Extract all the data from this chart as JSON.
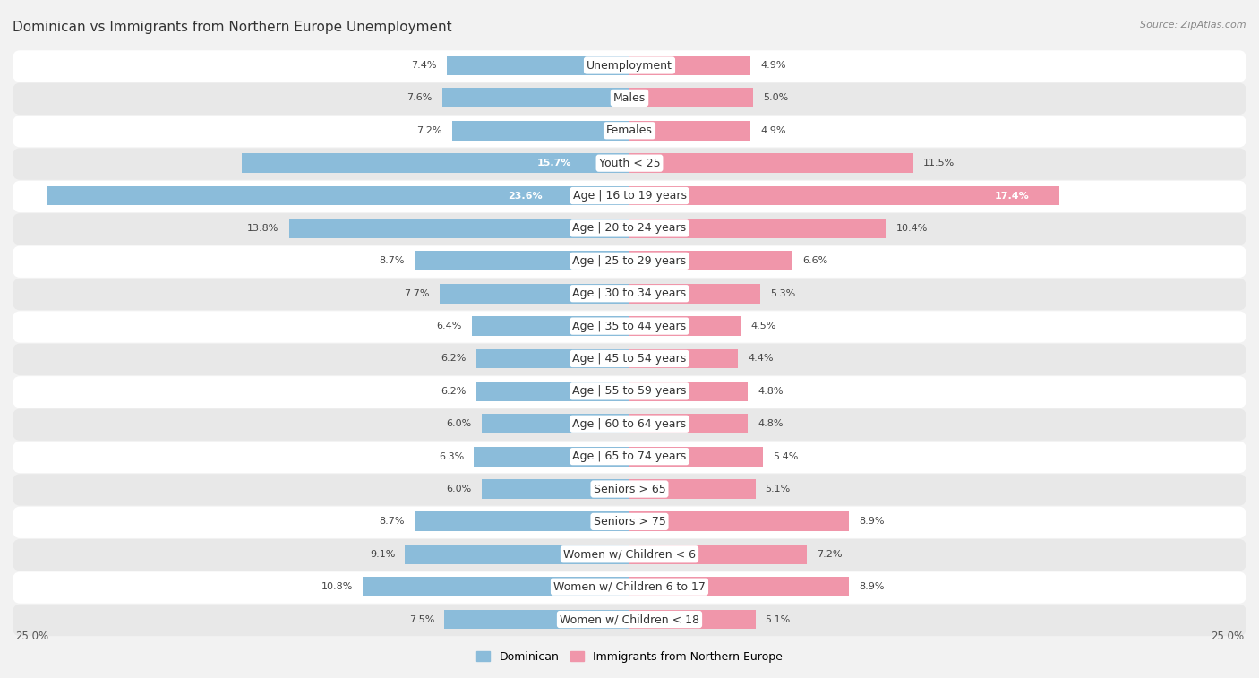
{
  "title": "Dominican vs Immigrants from Northern Europe Unemployment",
  "source": "Source: ZipAtlas.com",
  "categories": [
    "Unemployment",
    "Males",
    "Females",
    "Youth < 25",
    "Age | 16 to 19 years",
    "Age | 20 to 24 years",
    "Age | 25 to 29 years",
    "Age | 30 to 34 years",
    "Age | 35 to 44 years",
    "Age | 45 to 54 years",
    "Age | 55 to 59 years",
    "Age | 60 to 64 years",
    "Age | 65 to 74 years",
    "Seniors > 65",
    "Seniors > 75",
    "Women w/ Children < 6",
    "Women w/ Children 6 to 17",
    "Women w/ Children < 18"
  ],
  "dominican": [
    7.4,
    7.6,
    7.2,
    15.7,
    23.6,
    13.8,
    8.7,
    7.7,
    6.4,
    6.2,
    6.2,
    6.0,
    6.3,
    6.0,
    8.7,
    9.1,
    10.8,
    7.5
  ],
  "northern_europe": [
    4.9,
    5.0,
    4.9,
    11.5,
    17.4,
    10.4,
    6.6,
    5.3,
    4.5,
    4.4,
    4.8,
    4.8,
    5.4,
    5.1,
    8.9,
    7.2,
    8.9,
    5.1
  ],
  "dominican_color": "#8bbcda",
  "northern_europe_color": "#f096aa",
  "axis_max": 25.0,
  "background_color": "#f2f2f2",
  "row_color_even": "#ffffff",
  "row_color_odd": "#e8e8e8",
  "title_fontsize": 11,
  "label_fontsize": 9,
  "value_fontsize": 8,
  "legend_dominican": "Dominican",
  "legend_northern_europe": "Immigrants from Northern Europe"
}
